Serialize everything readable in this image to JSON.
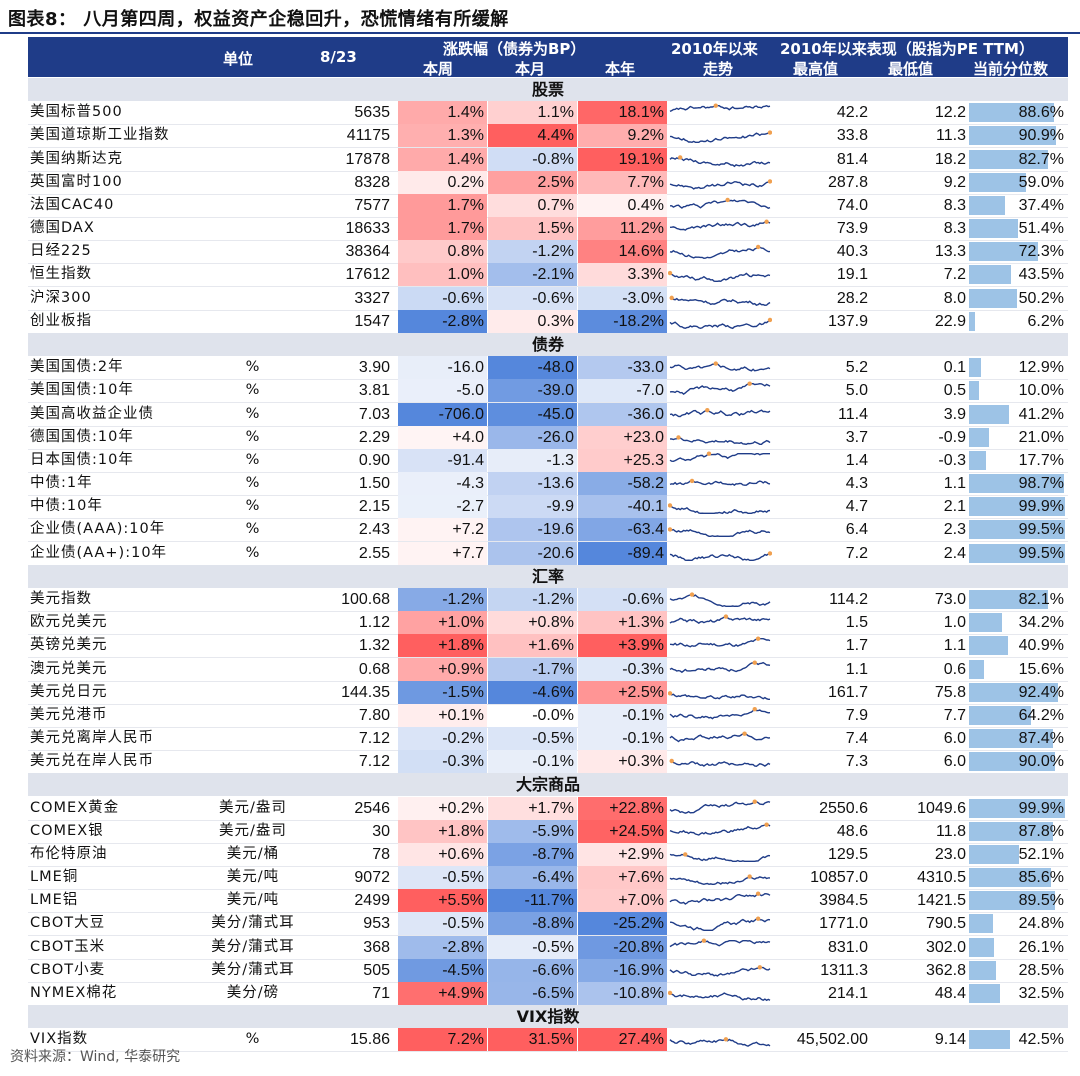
{
  "title": "图表8： 八月第四周，权益资产企稳回升，恐慌情绪有所缓解",
  "source": "资料来源：Wind, 华泰研究",
  "header": {
    "unit": "单位",
    "date": "8/23",
    "change_group": "涨跌幅（债券为BP）",
    "week": "本周",
    "month": "本月",
    "ytd": "本年",
    "trend_top": "2010年以来",
    "trend": "走势",
    "perf_group": "2010年以来表现（股指为PE TTM）",
    "high": "最高值",
    "low": "最低值",
    "percentile": "当前分位数"
  },
  "sections": [
    {
      "title": "股票",
      "rows": [
        {
          "name": "美国标普500",
          "unit": "",
          "value": "5635",
          "week": "1.4%",
          "month": "1.1%",
          "ytd": "18.1%",
          "high": "42.2",
          "low": "12.2",
          "pct": "88.6%",
          "pv": 0.886,
          "wv": 1.4,
          "mv": 1.1,
          "yv": 18.1
        },
        {
          "name": "美国道琼斯工业指数",
          "unit": "",
          "value": "41175",
          "week": "1.3%",
          "month": "4.4%",
          "ytd": "9.2%",
          "high": "33.8",
          "low": "11.3",
          "pct": "90.9%",
          "pv": 0.909,
          "wv": 1.3,
          "mv": 4.4,
          "yv": 9.2
        },
        {
          "name": "美国纳斯达克",
          "unit": "",
          "value": "17878",
          "week": "1.4%",
          "month": "-0.8%",
          "ytd": "19.1%",
          "high": "81.4",
          "low": "18.2",
          "pct": "82.7%",
          "pv": 0.827,
          "wv": 1.4,
          "mv": -0.8,
          "yv": 19.1
        },
        {
          "name": "英国富时100",
          "unit": "",
          "value": "8328",
          "week": "0.2%",
          "month": "2.5%",
          "ytd": "7.7%",
          "high": "287.8",
          "low": "9.2",
          "pct": "59.0%",
          "pv": 0.59,
          "wv": 0.2,
          "mv": 2.5,
          "yv": 7.7
        },
        {
          "name": "法国CAC40",
          "unit": "",
          "value": "7577",
          "week": "1.7%",
          "month": "0.7%",
          "ytd": "0.4%",
          "high": "74.0",
          "low": "8.3",
          "pct": "37.4%",
          "pv": 0.374,
          "wv": 1.7,
          "mv": 0.7,
          "yv": 0.4
        },
        {
          "name": "德国DAX",
          "unit": "",
          "value": "18633",
          "week": "1.7%",
          "month": "1.5%",
          "ytd": "11.2%",
          "high": "73.9",
          "low": "8.3",
          "pct": "51.4%",
          "pv": 0.514,
          "wv": 1.7,
          "mv": 1.5,
          "yv": 11.2
        },
        {
          "name": "日经225",
          "unit": "",
          "value": "38364",
          "week": "0.8%",
          "month": "-1.2%",
          "ytd": "14.6%",
          "high": "40.3",
          "low": "13.3",
          "pct": "72.3%",
          "pv": 0.723,
          "wv": 0.8,
          "mv": -1.2,
          "yv": 14.6
        },
        {
          "name": "恒生指数",
          "unit": "",
          "value": "17612",
          "week": "1.0%",
          "month": "-2.1%",
          "ytd": "3.3%",
          "high": "19.1",
          "low": "7.2",
          "pct": "43.5%",
          "pv": 0.435,
          "wv": 1.0,
          "mv": -2.1,
          "yv": 3.3
        },
        {
          "name": "沪深300",
          "unit": "",
          "value": "3327",
          "week": "-0.6%",
          "month": "-0.6%",
          "ytd": "-3.0%",
          "high": "28.2",
          "low": "8.0",
          "pct": "50.2%",
          "pv": 0.502,
          "wv": -0.6,
          "mv": -0.6,
          "yv": -3.0
        },
        {
          "name": "创业板指",
          "unit": "",
          "value": "1547",
          "week": "-2.8%",
          "month": "0.3%",
          "ytd": "-18.2%",
          "high": "137.9",
          "low": "22.9",
          "pct": "6.2%",
          "pv": 0.062,
          "wv": -2.8,
          "mv": 0.3,
          "yv": -18.2
        }
      ]
    },
    {
      "title": "债券",
      "rows": [
        {
          "name": "美国国债:2年",
          "unit": "%",
          "value": "3.90",
          "week": "-16.0",
          "month": "-48.0",
          "ytd": "-33.0",
          "high": "5.2",
          "low": "0.1",
          "pct": "12.9%",
          "pv": 0.129,
          "wv": -16,
          "mv": -48,
          "yv": -33
        },
        {
          "name": "美国国债:10年",
          "unit": "%",
          "value": "3.81",
          "week": "-5.0",
          "month": "-39.0",
          "ytd": "-7.0",
          "high": "5.0",
          "low": "0.5",
          "pct": "10.0%",
          "pv": 0.1,
          "wv": -5,
          "mv": -39,
          "yv": -7
        },
        {
          "name": "美国高收益企业债",
          "unit": "%",
          "value": "7.03",
          "week": "-706.0",
          "month": "-45.0",
          "ytd": "-36.0",
          "high": "11.4",
          "low": "3.9",
          "pct": "41.2%",
          "pv": 0.412,
          "wv": -706,
          "mv": -45,
          "yv": -36
        },
        {
          "name": "德国国债:10年",
          "unit": "%",
          "value": "2.29",
          "week": "+4.0",
          "month": "-26.0",
          "ytd": "+23.0",
          "high": "3.7",
          "low": "-0.9",
          "pct": "21.0%",
          "pv": 0.21,
          "wv": 4,
          "mv": -26,
          "yv": 23
        },
        {
          "name": "日本国债:10年",
          "unit": "%",
          "value": "0.90",
          "week": "-91.4",
          "month": "-1.3",
          "ytd": "+25.3",
          "high": "1.4",
          "low": "-0.3",
          "pct": "17.7%",
          "pv": 0.177,
          "wv": -91.4,
          "mv": -1.3,
          "yv": 25.3
        },
        {
          "name": "中债:1年",
          "unit": "%",
          "value": "1.50",
          "week": "-4.3",
          "month": "-13.6",
          "ytd": "-58.2",
          "high": "4.3",
          "low": "1.1",
          "pct": "98.7%",
          "pv": 0.987,
          "wv": -4.3,
          "mv": -13.6,
          "yv": -58.2
        },
        {
          "name": "中债:10年",
          "unit": "%",
          "value": "2.15",
          "week": "-2.7",
          "month": "-9.9",
          "ytd": "-40.1",
          "high": "4.7",
          "low": "2.1",
          "pct": "99.9%",
          "pv": 0.999,
          "wv": -2.7,
          "mv": -9.9,
          "yv": -40.1
        },
        {
          "name": "企业债(AAA):10年",
          "unit": "%",
          "value": "2.43",
          "week": "+7.2",
          "month": "-19.6",
          "ytd": "-63.4",
          "high": "6.4",
          "low": "2.3",
          "pct": "99.5%",
          "pv": 0.995,
          "wv": 7.2,
          "mv": -19.6,
          "yv": -63.4
        },
        {
          "name": "企业债(AA+):10年",
          "unit": "%",
          "value": "2.55",
          "week": "+7.7",
          "month": "-20.6",
          "ytd": "-89.4",
          "high": "7.2",
          "low": "2.4",
          "pct": "99.5%",
          "pv": 0.995,
          "wv": 7.7,
          "mv": -20.6,
          "yv": -89.4
        }
      ]
    },
    {
      "title": "汇率",
      "rows": [
        {
          "name": "美元指数",
          "unit": "",
          "value": "100.68",
          "week": "-1.2%",
          "month": "-1.2%",
          "ytd": "-0.6%",
          "high": "114.2",
          "low": "73.0",
          "pct": "82.1%",
          "pv": 0.821,
          "wv": -1.2,
          "mv": -1.2,
          "yv": -0.6
        },
        {
          "name": "欧元兑美元",
          "unit": "",
          "value": "1.12",
          "week": "+1.0%",
          "month": "+0.8%",
          "ytd": "+1.3%",
          "high": "1.5",
          "low": "1.0",
          "pct": "34.2%",
          "pv": 0.342,
          "wv": 1.0,
          "mv": 0.8,
          "yv": 1.3
        },
        {
          "name": "英镑兑美元",
          "unit": "",
          "value": "1.32",
          "week": "+1.8%",
          "month": "+1.6%",
          "ytd": "+3.9%",
          "high": "1.7",
          "low": "1.1",
          "pct": "40.9%",
          "pv": 0.409,
          "wv": 1.8,
          "mv": 1.6,
          "yv": 3.9
        },
        {
          "name": "澳元兑美元",
          "unit": "",
          "value": "0.68",
          "week": "+0.9%",
          "month": "-1.7%",
          "ytd": "-0.3%",
          "high": "1.1",
          "low": "0.6",
          "pct": "15.6%",
          "pv": 0.156,
          "wv": 0.9,
          "mv": -1.7,
          "yv": -0.3
        },
        {
          "name": "美元兑日元",
          "unit": "",
          "value": "144.35",
          "week": "-1.5%",
          "month": "-4.6%",
          "ytd": "+2.5%",
          "high": "161.7",
          "low": "75.8",
          "pct": "92.4%",
          "pv": 0.924,
          "wv": -1.5,
          "mv": -4.6,
          "yv": 2.5
        },
        {
          "name": "美元兑港币",
          "unit": "",
          "value": "7.80",
          "week": "+0.1%",
          "month": "-0.0%",
          "ytd": "-0.1%",
          "high": "7.9",
          "low": "7.7",
          "pct": "64.2%",
          "pv": 0.642,
          "wv": 0.1,
          "mv": 0,
          "yv": -0.1
        },
        {
          "name": "美元兑离岸人民币",
          "unit": "",
          "value": "7.12",
          "week": "-0.2%",
          "month": "-0.5%",
          "ytd": "-0.1%",
          "high": "7.4",
          "low": "6.0",
          "pct": "87.4%",
          "pv": 0.874,
          "wv": -0.2,
          "mv": -0.5,
          "yv": -0.1
        },
        {
          "name": "美元兑在岸人民币",
          "unit": "",
          "value": "7.12",
          "week": "-0.3%",
          "month": "-0.1%",
          "ytd": "+0.3%",
          "high": "7.3",
          "low": "6.0",
          "pct": "90.0%",
          "pv": 0.9,
          "wv": -0.3,
          "mv": -0.1,
          "yv": 0.3
        }
      ]
    },
    {
      "title": "大宗商品",
      "rows": [
        {
          "name": "COMEX黄金",
          "unit": "美元/盎司",
          "value": "2546",
          "week": "+0.2%",
          "month": "+1.7%",
          "ytd": "+22.8%",
          "high": "2550.6",
          "low": "1049.6",
          "pct": "99.9%",
          "pv": 0.999,
          "wv": 0.2,
          "mv": 1.7,
          "yv": 22.8
        },
        {
          "name": "COMEX银",
          "unit": "美元/盎司",
          "value": "30",
          "week": "+1.8%",
          "month": "-5.9%",
          "ytd": "+24.5%",
          "high": "48.6",
          "low": "11.8",
          "pct": "87.8%",
          "pv": 0.878,
          "wv": 1.8,
          "mv": -5.9,
          "yv": 24.5
        },
        {
          "name": "布伦特原油",
          "unit": "美元/桶",
          "value": "78",
          "week": "+0.6%",
          "month": "-8.7%",
          "ytd": "+2.9%",
          "high": "129.5",
          "low": "23.0",
          "pct": "52.1%",
          "pv": 0.521,
          "wv": 0.6,
          "mv": -8.7,
          "yv": 2.9
        },
        {
          "name": "LME铜",
          "unit": "美元/吨",
          "value": "9072",
          "week": "-0.5%",
          "month": "-6.4%",
          "ytd": "+7.6%",
          "high": "10857.0",
          "low": "4310.5",
          "pct": "85.6%",
          "pv": 0.856,
          "wv": -0.5,
          "mv": -6.4,
          "yv": 7.6
        },
        {
          "name": "LME铝",
          "unit": "美元/吨",
          "value": "2499",
          "week": "+5.5%",
          "month": "-11.7%",
          "ytd": "+7.0%",
          "high": "3984.5",
          "low": "1421.5",
          "pct": "89.5%",
          "pv": 0.895,
          "wv": 5.5,
          "mv": -11.7,
          "yv": 7.0
        },
        {
          "name": "CBOT大豆",
          "unit": "美分/蒲式耳",
          "value": "953",
          "week": "-0.5%",
          "month": "-8.8%",
          "ytd": "-25.2%",
          "high": "1771.0",
          "low": "790.5",
          "pct": "24.8%",
          "pv": 0.248,
          "wv": -0.5,
          "mv": -8.8,
          "yv": -25.2
        },
        {
          "name": "CBOT玉米",
          "unit": "美分/蒲式耳",
          "value": "368",
          "week": "-2.8%",
          "month": "-0.5%",
          "ytd": "-20.8%",
          "high": "831.0",
          "low": "302.0",
          "pct": "26.1%",
          "pv": 0.261,
          "wv": -2.8,
          "mv": -0.5,
          "yv": -20.8
        },
        {
          "name": "CBOT小麦",
          "unit": "美分/蒲式耳",
          "value": "505",
          "week": "-4.5%",
          "month": "-6.6%",
          "ytd": "-16.9%",
          "high": "1311.3",
          "low": "362.8",
          "pct": "28.5%",
          "pv": 0.285,
          "wv": -4.5,
          "mv": -6.6,
          "yv": -16.9
        },
        {
          "name": "NYMEX棉花",
          "unit": "美分/磅",
          "value": "71",
          "week": "+4.9%",
          "month": "-6.5%",
          "ytd": "-10.8%",
          "high": "214.1",
          "low": "48.4",
          "pct": "32.5%",
          "pv": 0.325,
          "wv": 4.9,
          "mv": -6.5,
          "yv": -10.8
        }
      ]
    },
    {
      "title": "VIX指数",
      "rows": [
        {
          "name": "VIX指数",
          "unit": "%",
          "value": "15.86",
          "week": "7.2%",
          "month": "31.5%",
          "ytd": "27.4%",
          "high": "45,502.00",
          "low": "9.14",
          "pct": "42.5%",
          "pv": 0.425,
          "wv": 7.2,
          "mv": 31.5,
          "yv": 27.4
        }
      ]
    }
  ],
  "colors": {
    "header": "#1f3c88",
    "bar": "#9dc3e6",
    "line": "#1f3c88",
    "dot": "#f0a050"
  }
}
